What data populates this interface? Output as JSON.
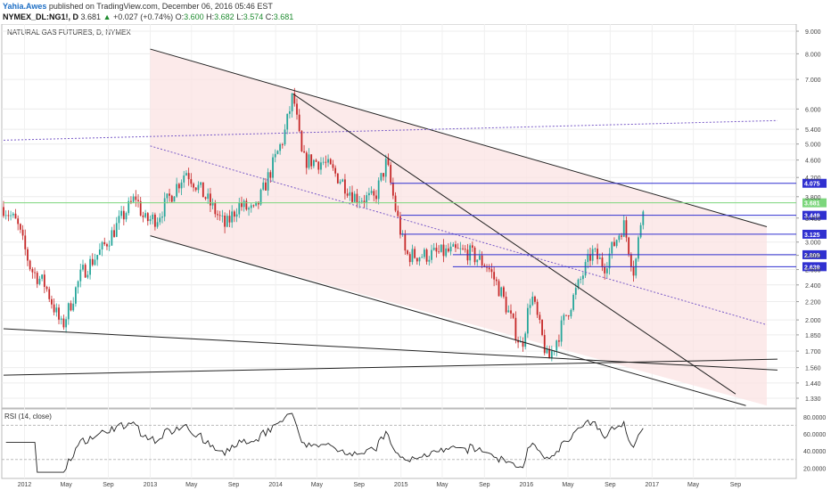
{
  "header": {
    "author": "Yahia.Awes",
    "published": "published on TradingView.com, December 06, 2016 05:46 EST",
    "symbol": "NYMEX_DL:NG1!, D",
    "last": "3.681",
    "change": "+0.027 (+0.74%)",
    "o_label": "O:",
    "o_val": "3.600",
    "h_label": "H:",
    "h_val": "3.682",
    "l_label": "L:",
    "l_val": "3.574",
    "c_label": "C:",
    "c_val": "3.681"
  },
  "colors": {
    "up": "#26a69a",
    "down": "#c62828",
    "channel_fill": "#fbe3e3",
    "level_line": "#3030d0",
    "trend_line": "#222222",
    "rsi_line": "#222222",
    "current_price": "#7cd67c"
  },
  "chart_data": {
    "type": "candlestick",
    "title": "NATURAL GAS FUTURES, D, NYMEX",
    "y_scale": "log",
    "y_ticks": [
      "9.000",
      "8.000",
      "7.000",
      "6.000",
      "5.400",
      "5.000",
      "4.600",
      "4.200",
      "3.800",
      "3.400",
      "3.000",
      "2.800",
      "2.600",
      "2.400",
      "2.200",
      "2.000",
      "1.850",
      "1.700",
      "1.560",
      "1.440",
      "1.330"
    ],
    "x_ticks": [
      "2012",
      "May",
      "Sep",
      "2013",
      "May",
      "Sep",
      "2014",
      "May",
      "Sep",
      "2015",
      "May",
      "Sep",
      "2016",
      "May",
      "Sep",
      "2017",
      "May",
      "Sep"
    ],
    "price_path": [
      [
        "2011-11-01",
        3.6
      ],
      [
        "2011-12-10",
        3.3
      ],
      [
        "2012-01-20",
        2.6
      ],
      [
        "2012-03-01",
        2.4
      ],
      [
        "2012-04-19",
        1.92
      ],
      [
        "2012-06-15",
        2.55
      ],
      [
        "2012-08-15",
        2.9
      ],
      [
        "2012-10-10",
        3.4
      ],
      [
        "2012-11-20",
        3.8
      ],
      [
        "2012-12-15",
        3.35
      ],
      [
        "2013-01-20",
        3.4
      ],
      [
        "2013-04-15",
        4.35
      ],
      [
        "2013-06-10",
        3.8
      ],
      [
        "2013-08-08",
        3.25
      ],
      [
        "2013-09-15",
        3.65
      ],
      [
        "2013-11-01",
        3.5
      ],
      [
        "2013-12-20",
        4.4
      ],
      [
        "2014-01-25",
        5.2
      ],
      [
        "2014-02-21",
        6.49
      ],
      [
        "2014-03-20",
        4.6
      ],
      [
        "2014-05-20",
        4.55
      ],
      [
        "2014-07-10",
        4.15
      ],
      [
        "2014-08-20",
        3.8
      ],
      [
        "2014-10-15",
        3.75
      ],
      [
        "2014-11-20",
        4.55
      ],
      [
        "2014-12-15",
        3.6
      ],
      [
        "2015-01-15",
        2.8
      ],
      [
        "2015-03-10",
        2.8
      ],
      [
        "2015-05-20",
        2.85
      ],
      [
        "2015-07-15",
        2.85
      ],
      [
        "2015-09-10",
        2.65
      ],
      [
        "2015-10-20",
        2.3
      ],
      [
        "2015-12-18",
        1.73
      ],
      [
        "2016-01-15",
        2.3
      ],
      [
        "2016-03-04",
        1.61
      ],
      [
        "2016-04-20",
        2.0
      ],
      [
        "2016-06-01",
        2.4
      ],
      [
        "2016-07-10",
        2.85
      ],
      [
        "2016-08-15",
        2.65
      ],
      [
        "2016-09-15",
        3.0
      ],
      [
        "2016-10-10",
        3.3
      ],
      [
        "2016-11-10",
        2.55
      ],
      [
        "2016-12-06",
        3.681
      ]
    ],
    "price_levels": [
      {
        "label": "4.075",
        "value": 4.075,
        "from": "2014-12-01"
      },
      {
        "label": "3.681",
        "value": 3.681,
        "from": "2011-11-01"
      },
      {
        "label": "3.449",
        "value": 3.449,
        "from": "2015-01-01"
      },
      {
        "label": "3.125",
        "value": 3.125,
        "from": "2015-01-01"
      },
      {
        "label": "2.809",
        "value": 2.809,
        "from": "2015-06-01"
      },
      {
        "label": "2.639",
        "value": 2.639,
        "from": "2015-06-01"
      }
    ],
    "trend_lines": [
      {
        "from": [
          "2013-01-01",
          8.2
        ],
        "to": [
          "2017-12-01",
          3.25
        ]
      },
      {
        "from": [
          "2013-01-01",
          3.1
        ],
        "to": [
          "2017-10-01",
          1.28
        ]
      },
      {
        "from": [
          "2014-02-21",
          6.49
        ],
        "to": [
          "2017-09-01",
          1.36
        ]
      },
      {
        "from": [
          "2011-11-01",
          1.91
        ],
        "to": [
          "2018-01-01",
          1.54
        ]
      },
      {
        "from": [
          "2011-11-01",
          1.5
        ],
        "to": [
          "2018-01-01",
          1.63
        ]
      }
    ],
    "dotted_lines": [
      {
        "from": [
          "2011-11-01",
          5.1
        ],
        "to": [
          "2018-01-01",
          5.65
        ]
      },
      {
        "from": [
          "2013-01-01",
          4.95
        ],
        "to": [
          "2017-12-01",
          1.95
        ]
      }
    ],
    "channel": {
      "x_from": "2013-01-01",
      "x_to": "2017-12-01",
      "top_from": 8.2,
      "top_to": 3.25,
      "bottom_from": 3.1,
      "bottom_to": 1.28
    },
    "rsi": {
      "label": "RSI (14, close)",
      "y_ticks": [
        "80.0000",
        "60.0000",
        "40.0000",
        "20.0000"
      ],
      "ylim": [
        12,
        85
      ]
    }
  }
}
